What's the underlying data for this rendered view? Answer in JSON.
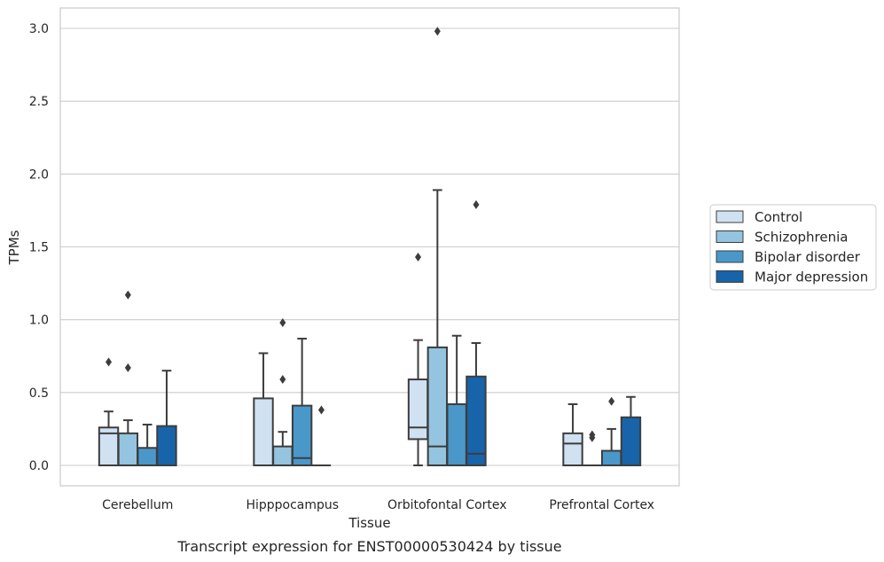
{
  "chart_data": {
    "type": "box",
    "title": "",
    "caption": "Transcript expression for ENST00000530424 by tissue",
    "xlabel": "Tissue",
    "ylabel": "TPMs",
    "ylim": [
      -0.14,
      3.14
    ],
    "yticks": [
      0.0,
      0.5,
      1.0,
      1.5,
      2.0,
      2.5,
      3.0
    ],
    "ytick_labels": [
      "0.0",
      "0.5",
      "1.0",
      "1.5",
      "2.0",
      "2.5",
      "3.0"
    ],
    "categories": [
      "Cerebellum",
      "Hipppocampus",
      "Orbitofontal Cortex",
      "Prefrontal Cortex"
    ],
    "grid": "horizontal",
    "legend_position": "right",
    "series": [
      {
        "name": "Control",
        "color": "#d0e1f2",
        "boxes": [
          {
            "whislo": 0.0,
            "q1": 0.0,
            "med": 0.22,
            "q3": 0.26,
            "whishi": 0.37,
            "fliers": [
              0.71
            ]
          },
          {
            "whislo": 0.0,
            "q1": 0.0,
            "med": 0.0,
            "q3": 0.46,
            "whishi": 0.77,
            "fliers": []
          },
          {
            "whislo": 0.0,
            "q1": 0.18,
            "med": 0.26,
            "q3": 0.59,
            "whishi": 0.86,
            "fliers": [
              1.43
            ]
          },
          {
            "whislo": 0.0,
            "q1": 0.0,
            "med": 0.15,
            "q3": 0.22,
            "whishi": 0.42,
            "fliers": []
          }
        ]
      },
      {
        "name": "Schizophrenia",
        "color": "#94c4df",
        "boxes": [
          {
            "whislo": 0.0,
            "q1": 0.0,
            "med": 0.0,
            "q3": 0.22,
            "whishi": 0.31,
            "fliers": [
              0.67,
              1.17
            ]
          },
          {
            "whislo": 0.0,
            "q1": 0.0,
            "med": 0.0,
            "q3": 0.13,
            "whishi": 0.23,
            "fliers": [
              0.59,
              0.98
            ]
          },
          {
            "whislo": 0.0,
            "q1": 0.0,
            "med": 0.13,
            "q3": 0.81,
            "whishi": 1.89,
            "fliers": [
              2.98
            ]
          },
          {
            "whislo": 0.0,
            "q1": 0.0,
            "med": 0.0,
            "q3": 0.0,
            "whishi": 0.0,
            "fliers": [
              0.19,
              0.21
            ]
          }
        ]
      },
      {
        "name": "Bipolar disorder",
        "color": "#4a98c9",
        "boxes": [
          {
            "whislo": 0.0,
            "q1": 0.0,
            "med": 0.0,
            "q3": 0.12,
            "whishi": 0.28,
            "fliers": []
          },
          {
            "whislo": 0.0,
            "q1": 0.0,
            "med": 0.05,
            "q3": 0.41,
            "whishi": 0.87,
            "fliers": []
          },
          {
            "whislo": 0.0,
            "q1": 0.0,
            "med": 0.0,
            "q3": 0.42,
            "whishi": 0.89,
            "fliers": []
          },
          {
            "whislo": 0.0,
            "q1": 0.0,
            "med": 0.0,
            "q3": 0.1,
            "whishi": 0.25,
            "fliers": [
              0.44
            ]
          }
        ]
      },
      {
        "name": "Major depression",
        "color": "#1764ab",
        "boxes": [
          {
            "whislo": 0.0,
            "q1": 0.0,
            "med": 0.0,
            "q3": 0.27,
            "whishi": 0.65,
            "fliers": []
          },
          {
            "whislo": 0.0,
            "q1": 0.0,
            "med": 0.0,
            "q3": 0.0,
            "whishi": 0.0,
            "fliers": [
              0.38
            ]
          },
          {
            "whislo": 0.0,
            "q1": 0.0,
            "med": 0.08,
            "q3": 0.61,
            "whishi": 0.84,
            "fliers": [
              1.79
            ]
          },
          {
            "whislo": 0.0,
            "q1": 0.0,
            "med": 0.0,
            "q3": 0.33,
            "whishi": 0.47,
            "fliers": []
          }
        ]
      }
    ]
  }
}
